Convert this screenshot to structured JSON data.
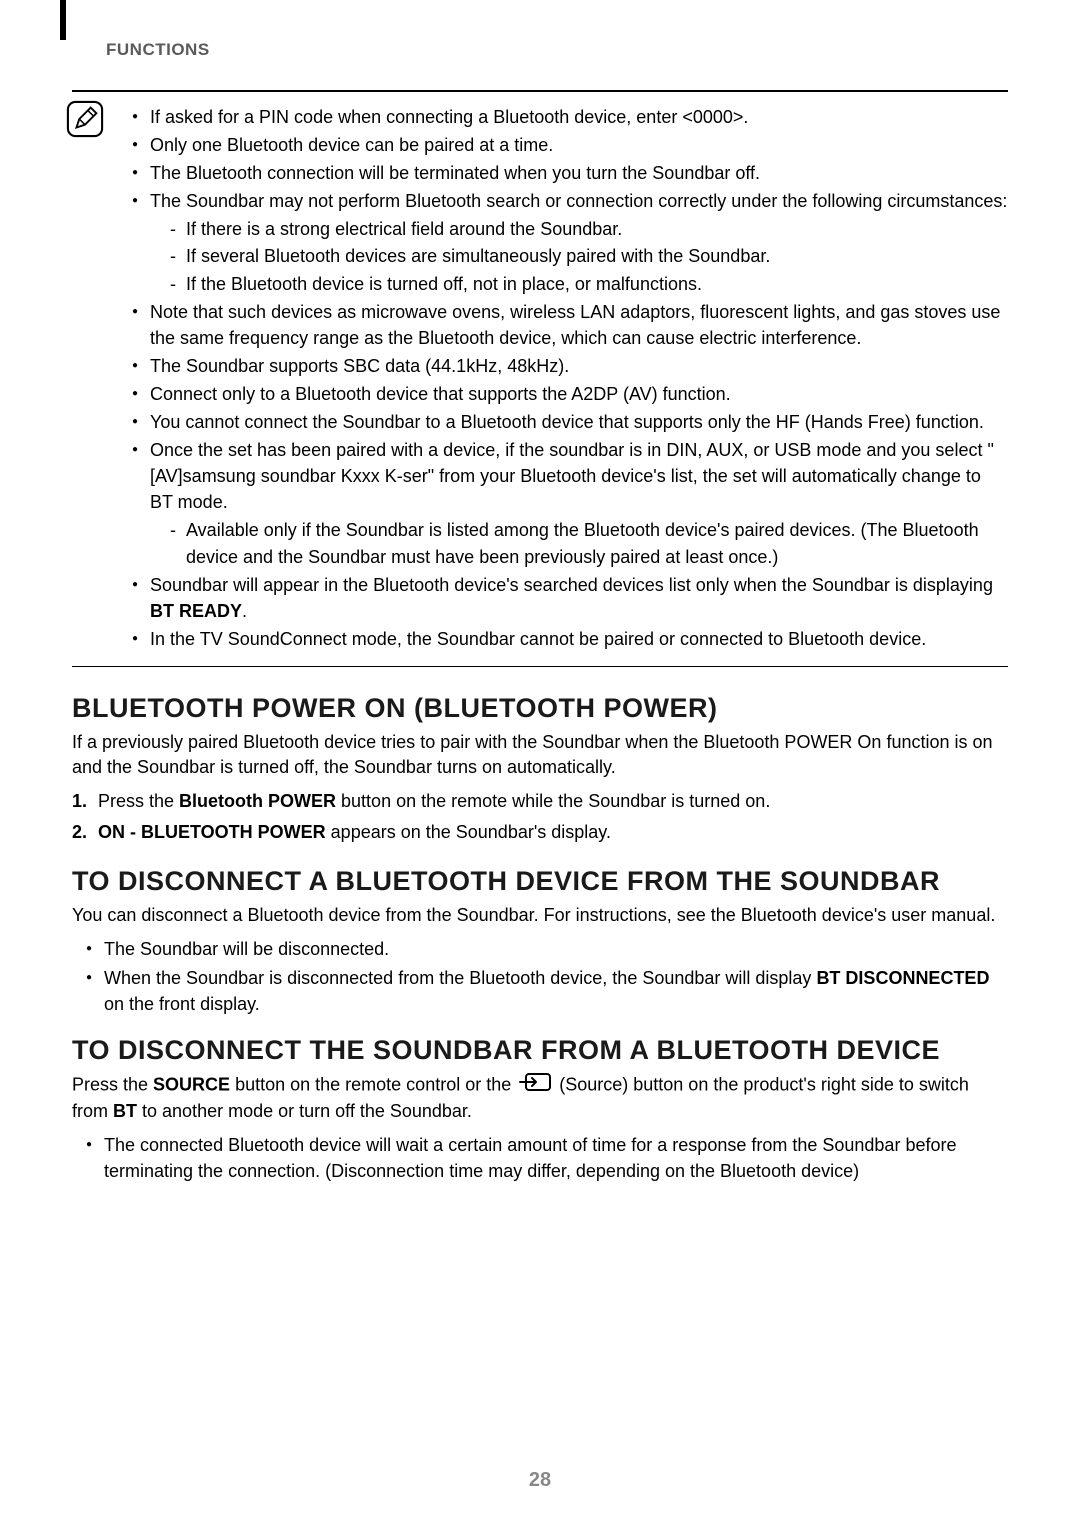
{
  "header": {
    "section_label": "FUNCTIONS"
  },
  "note_box": {
    "items": [
      {
        "text": "If asked for a PIN code when connecting a Bluetooth device, enter <0000>."
      },
      {
        "text": "Only one Bluetooth device can be paired at a time."
      },
      {
        "text": "The Bluetooth connection will be terminated when you turn the Soundbar off."
      },
      {
        "text": "The Soundbar may not perform Bluetooth search or connection correctly under the following circumstances:",
        "sub": [
          "If there is a strong electrical field around the Soundbar.",
          "If several Bluetooth devices are simultaneously paired with the Soundbar.",
          "If the Bluetooth device is turned off, not in place, or malfunctions."
        ]
      },
      {
        "text": "Note that such devices as microwave ovens, wireless LAN adaptors, fluorescent lights, and gas stoves use the same frequency range as the Bluetooth device, which can cause electric interference."
      },
      {
        "text": "The Soundbar supports SBC data (44.1kHz, 48kHz)."
      },
      {
        "text": "Connect only to a Bluetooth device that supports the A2DP (AV) function."
      },
      {
        "text": "You cannot connect the Soundbar to a Bluetooth device that supports only the HF (Hands Free) function."
      },
      {
        "text": "Once the set has been paired with a device, if the soundbar is in DIN, AUX, or USB mode and you select \"[AV]samsung soundbar Kxxx K-ser\" from your Bluetooth device's list, the set will automatically change to BT mode.",
        "sub": [
          "Available only if the Soundbar is listed among the Bluetooth device's paired devices. (The Bluetooth device and the Soundbar must have been previously paired at least once.)"
        ]
      },
      {
        "pre": "Soundbar will appear in the Bluetooth device's searched devices list only when the Soundbar is displaying ",
        "bold": "BT READY",
        "post": "."
      },
      {
        "text": "In the TV SoundConnect mode, the Soundbar cannot be paired or connected to Bluetooth device."
      }
    ]
  },
  "section1": {
    "heading": "BLUETOOTH POWER ON (BLUETOOTH POWER)",
    "intro": "If a previously paired Bluetooth device tries to pair with the Soundbar when the Bluetooth POWER On function is on and the Soundbar is turned off, the Soundbar turns on automatically.",
    "steps": [
      {
        "num": "1.",
        "pre": "Press the ",
        "bold": "Bluetooth POWER",
        "post": " button on the remote while the Soundbar is turned on."
      },
      {
        "num": "2.",
        "bold": "ON - BLUETOOTH POWER",
        "post": " appears on the Soundbar's display."
      }
    ]
  },
  "section2": {
    "heading": "TO DISCONNECT A BLUETOOTH DEVICE FROM THE SOUNDBAR",
    "intro": "You can disconnect a Bluetooth device from the Soundbar. For instructions, see the Bluetooth device's user manual.",
    "items": [
      {
        "text": "The Soundbar will be disconnected."
      },
      {
        "pre": "When the Soundbar is disconnected from the Bluetooth device, the Soundbar will display ",
        "bold": "BT DISCONNECTED",
        "post": " on the front display."
      }
    ]
  },
  "section3": {
    "heading": "TO DISCONNECT THE SOUNDBAR FROM A BLUETOOTH DEVICE",
    "intro_pre": "Press the ",
    "intro_bold1": "SOURCE",
    "intro_mid": " button on the remote control or the ",
    "intro_after_icon": " (Source) button on the product's right side to switch from ",
    "intro_bold2": "BT",
    "intro_end": " to another mode or turn off the Soundbar.",
    "items": [
      {
        "text": "The connected Bluetooth device will wait a certain amount of time for a response from the Soundbar before terminating the connection. (Disconnection time may differ, depending on the Bluetooth device)"
      }
    ]
  },
  "page_number": "28"
}
